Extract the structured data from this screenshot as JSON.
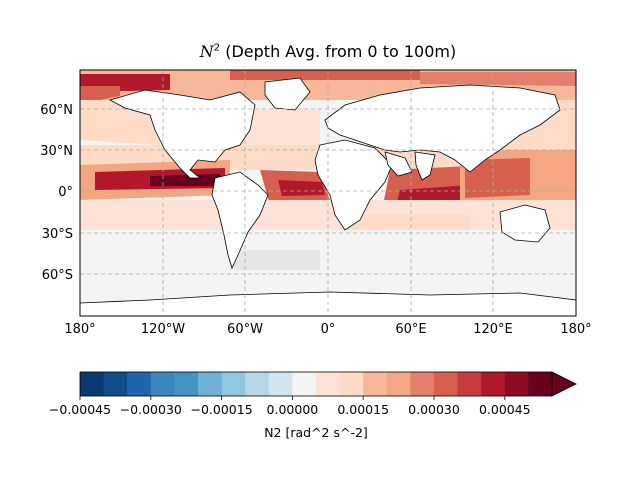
{
  "title_symbol": "N",
  "title_exponent": "2",
  "title_rest": " (Depth Avg. from 0 to 100m)",
  "map": {
    "projection": "PlateCarree",
    "extent": {
      "lon": [
        -180,
        180
      ],
      "lat": [
        -90,
        90
      ]
    },
    "gridlines": "dashed gray",
    "lat_ticks": [
      "60°N",
      "30°N",
      "0°",
      "30°S",
      "60°S"
    ],
    "lon_ticks": [
      "180°",
      "120°W",
      "60°W",
      "0°",
      "60°E",
      "120°E",
      "180°"
    ],
    "land_color": "#ffffff",
    "coastline_color": "#000000"
  },
  "colorbar": {
    "label": "N2 [rad^2 s^-2]",
    "ticks": [
      "−0.00045",
      "−0.00030",
      "−0.00015",
      "0.00000",
      "0.00015",
      "0.00030",
      "0.00045"
    ],
    "extend": "max",
    "cmap": "RdBu_r",
    "colors": [
      "#0a3a70",
      "#114d8a",
      "#2166ac",
      "#3a87bd",
      "#4393c3",
      "#6fb0d4",
      "#92c5de",
      "#b6d7e8",
      "#d1e5f0",
      "#f4f4f4",
      "#fde3d7",
      "#fddbc7",
      "#f7b799",
      "#f4a582",
      "#e2806b",
      "#d6604d",
      "#c53e3d",
      "#b2182b",
      "#8b0c24",
      "#67001f"
    ]
  },
  "chart_data": {
    "type": "heatmap",
    "title": "N^2 (Depth Avg. from 0 to 100m)",
    "value_range": [
      -0.00045,
      0.00045
    ],
    "units": "rad^2 s^-2",
    "colorbar_label": "N2 [rad^2 s^-2]"
  }
}
